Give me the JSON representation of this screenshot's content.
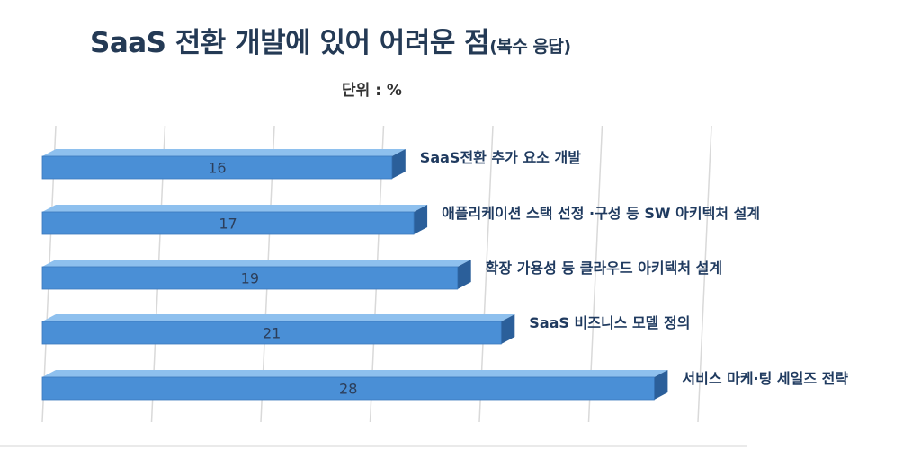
{
  "title": "SaaS 전환 개발에 있어 어려운 점",
  "title_note": "(복수 응답)",
  "unit_label": "단위 : %",
  "colors": {
    "bar_front": "#4a8fd6",
    "bar_top": "#8ec0ee",
    "bar_side": "#2b5f9a",
    "grid": "#d9d9d9"
  },
  "chart_data": {
    "type": "bar",
    "orientation": "horizontal",
    "style": "3d",
    "categories": [
      "SaaS전환 추가 요소 개발",
      "애플리케이션 스택 선정 ·구성 등 SW 아키텍처 설계",
      "확장 가용성 등 클라우드 아키텍처 설계",
      "SaaS 비즈니스 모델 정의",
      "서비스 마케·팅 세일즈 전략"
    ],
    "values": [
      16,
      17,
      19,
      21,
      28
    ],
    "data_labels": [
      "16",
      "17",
      "19",
      "21",
      "28"
    ],
    "xlim": [
      0,
      32
    ],
    "grid": true,
    "legend": "none"
  }
}
